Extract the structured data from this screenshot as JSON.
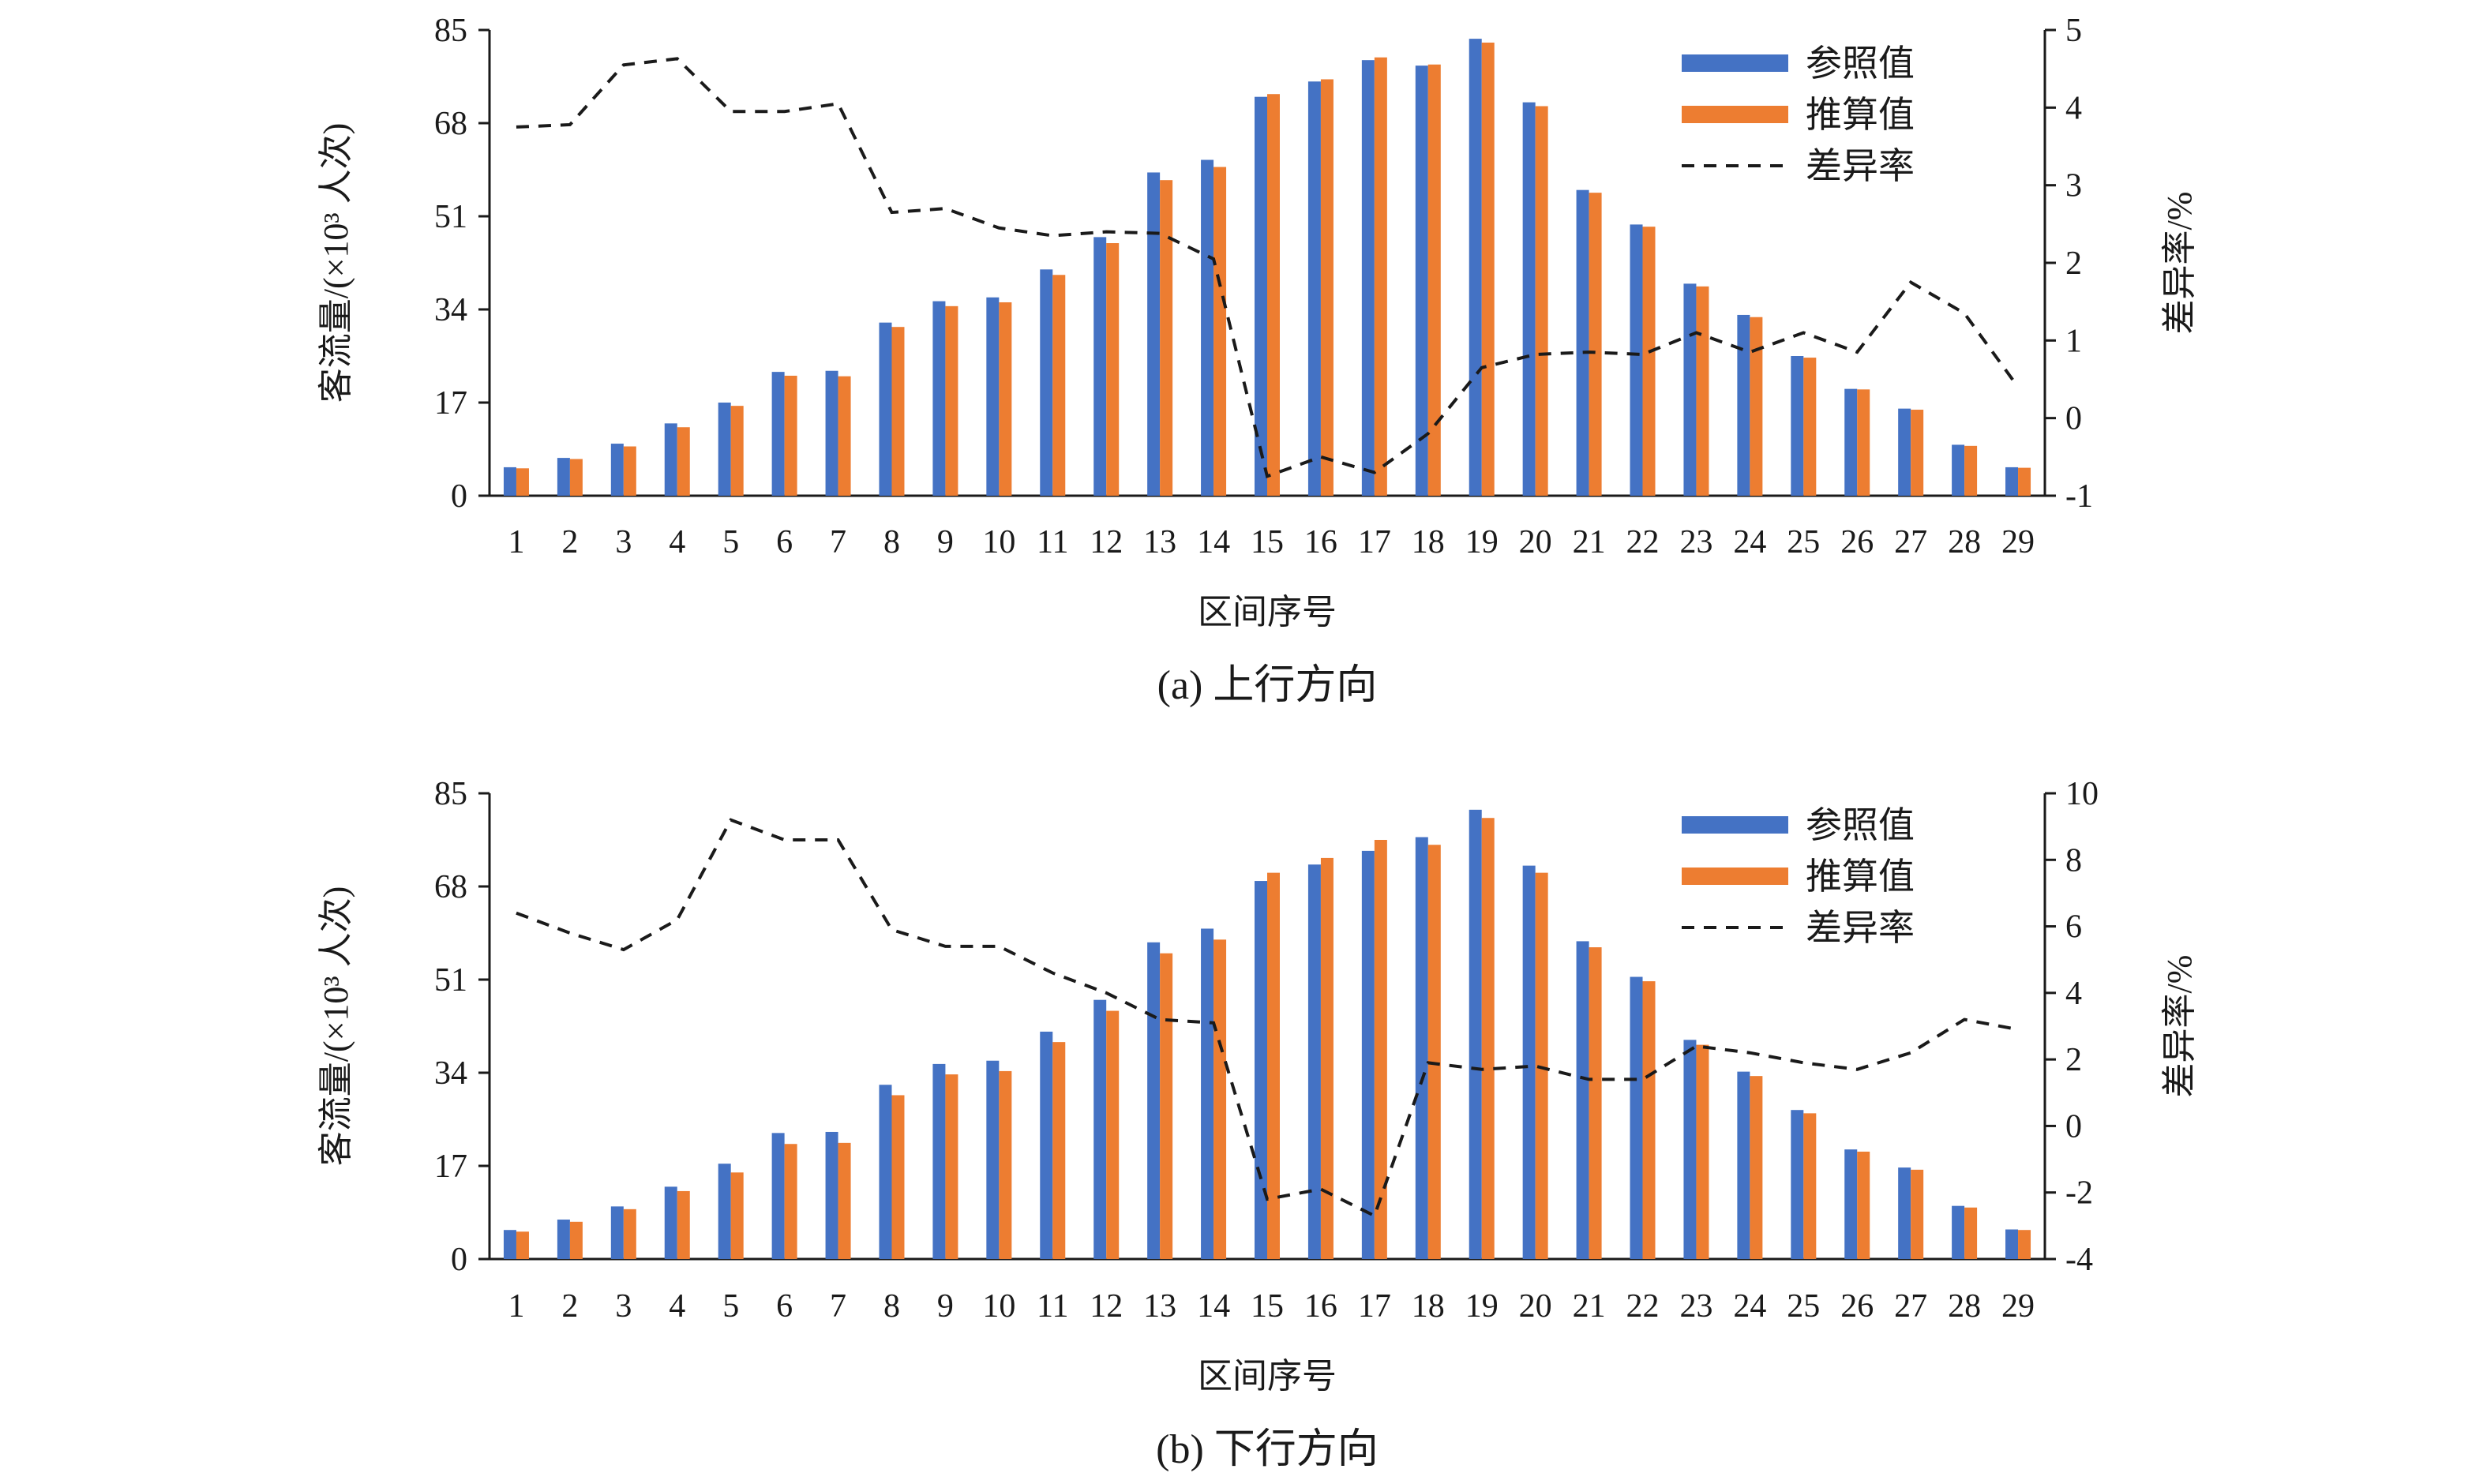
{
  "chart_data": [
    {
      "type": "bar",
      "caption": "(a) 上行方向",
      "xlabel": "区间序号",
      "ylabel": "客流量/(×10³ 人次)",
      "y2label": "差异率/%",
      "categories": [
        "1",
        "2",
        "3",
        "4",
        "5",
        "6",
        "7",
        "8",
        "9",
        "10",
        "11",
        "12",
        "13",
        "14",
        "15",
        "16",
        "17",
        "18",
        "19",
        "20",
        "21",
        "22",
        "23",
        "24",
        "25",
        "26",
        "27",
        "28",
        "29"
      ],
      "ylim": [
        0,
        85
      ],
      "yticks": [
        0,
        17,
        34,
        51,
        68,
        85
      ],
      "y2lim": [
        -1,
        5
      ],
      "y2ticks": [
        -1,
        0,
        1,
        2,
        3,
        4,
        5
      ],
      "legend_position": "top-right",
      "series": [
        {
          "name": "参照值",
          "type": "bar",
          "axis": "left",
          "color": "#4472C4",
          "values": [
            5.2,
            6.9,
            9.5,
            13.2,
            17.0,
            22.6,
            22.8,
            31.6,
            35.5,
            36.2,
            41.3,
            47.2,
            59.0,
            61.3,
            72.8,
            75.6,
            79.5,
            78.5,
            83.4,
            71.8,
            55.8,
            49.5,
            38.7,
            33.0,
            25.5,
            19.5,
            15.9,
            9.3,
            5.2
          ]
        },
        {
          "name": "推算值",
          "type": "bar",
          "axis": "left",
          "color": "#ED7D31",
          "values": [
            5.0,
            6.7,
            9.0,
            12.5,
            16.4,
            21.9,
            21.8,
            30.8,
            34.6,
            35.3,
            40.3,
            46.1,
            57.6,
            60.0,
            73.3,
            76.0,
            80.0,
            78.7,
            82.7,
            71.1,
            55.3,
            49.1,
            38.2,
            32.6,
            25.2,
            19.4,
            15.7,
            9.1,
            5.1
          ]
        },
        {
          "name": "差异率",
          "type": "line",
          "axis": "right",
          "style": "dashed",
          "color": "#1a1a1a",
          "values": [
            3.75,
            3.78,
            4.55,
            4.63,
            3.95,
            3.95,
            4.05,
            2.65,
            2.7,
            2.45,
            2.35,
            2.4,
            2.38,
            2.05,
            -0.75,
            -0.5,
            -0.7,
            -0.2,
            0.65,
            0.82,
            0.85,
            0.82,
            1.1,
            0.85,
            1.1,
            0.85,
            1.75,
            1.35,
            0.4
          ]
        }
      ]
    },
    {
      "type": "bar",
      "caption": "(b) 下行方向",
      "xlabel": "区间序号",
      "ylabel": "客流量/(×10³ 人次)",
      "y2label": "差异率/%",
      "categories": [
        "1",
        "2",
        "3",
        "4",
        "5",
        "6",
        "7",
        "8",
        "9",
        "10",
        "11",
        "12",
        "13",
        "14",
        "15",
        "16",
        "17",
        "18",
        "19",
        "20",
        "21",
        "22",
        "23",
        "24",
        "25",
        "26",
        "27",
        "28",
        "29"
      ],
      "ylim": [
        0,
        85
      ],
      "yticks": [
        0,
        17,
        34,
        51,
        68,
        85
      ],
      "y2lim": [
        -4,
        10
      ],
      "y2ticks": [
        -4,
        -2,
        0,
        2,
        4,
        6,
        8,
        10
      ],
      "legend_position": "top-right",
      "series": [
        {
          "name": "参照值",
          "type": "bar",
          "axis": "left",
          "color": "#4472C4",
          "values": [
            5.3,
            7.2,
            9.6,
            13.2,
            17.4,
            23.0,
            23.2,
            31.8,
            35.6,
            36.2,
            41.5,
            47.3,
            57.8,
            60.3,
            69.0,
            72.0,
            74.5,
            77.0,
            82.0,
            71.8,
            58.0,
            51.5,
            40.0,
            34.2,
            27.2,
            20.0,
            16.7,
            9.7,
            5.4
          ]
        },
        {
          "name": "推算值",
          "type": "bar",
          "axis": "left",
          "color": "#ED7D31",
          "values": [
            5.0,
            6.8,
            9.1,
            12.4,
            15.8,
            21.0,
            21.2,
            29.9,
            33.7,
            34.3,
            39.6,
            45.3,
            55.8,
            58.3,
            70.5,
            73.2,
            76.5,
            75.6,
            80.5,
            70.5,
            56.9,
            50.7,
            39.1,
            33.4,
            26.6,
            19.6,
            16.3,
            9.4,
            5.3
          ]
        },
        {
          "name": "差异率",
          "type": "line",
          "axis": "right",
          "style": "dashed",
          "color": "#1a1a1a",
          "values": [
            6.4,
            5.8,
            5.3,
            6.2,
            9.2,
            8.6,
            8.6,
            5.9,
            5.4,
            5.4,
            4.6,
            4.0,
            3.2,
            3.1,
            -2.2,
            -1.9,
            -2.7,
            1.9,
            1.7,
            1.8,
            1.4,
            1.4,
            2.4,
            2.2,
            1.9,
            1.7,
            2.2,
            3.2,
            2.9
          ]
        }
      ]
    }
  ]
}
